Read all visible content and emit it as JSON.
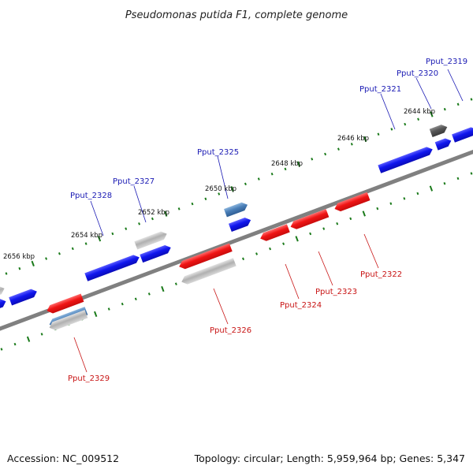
{
  "title": "Pseudomonas putida F1, complete genome",
  "footer": {
    "accession": "Accession: NC_009512",
    "topology": "Topology: circular; Length: 5,959,964 bp; Genes: 5,347"
  },
  "colors": {
    "forward_gene": "#0a10e0",
    "reverse_gene": "#e81010",
    "rna_gene": "#4a7fb8",
    "pseudo_gene": "#a8a8a8",
    "dark_gene": "#5a5a5a",
    "backbone": "#808080",
    "tick": "#1a7a1a",
    "label_forward": "#1a1ab4",
    "label_reverse": "#c81414"
  },
  "ruler": {
    "labels": [
      "2644 kbp",
      "2646 kbp",
      "2648 kbp",
      "2650 kbp",
      "2652 kbp",
      "2654 kbp",
      "2656 kbp"
    ]
  },
  "genes": [
    {
      "name": "Pput_2319",
      "strand": "+",
      "type": "forward"
    },
    {
      "name": "Pput_2320",
      "strand": "+",
      "type": "forward"
    },
    {
      "name": "Pput_2321",
      "strand": "+",
      "type": "forward"
    },
    {
      "name": "Pput_2322",
      "strand": "-",
      "type": "reverse"
    },
    {
      "name": "Pput_2323",
      "strand": "-",
      "type": "reverse"
    },
    {
      "name": "Pput_2324",
      "strand": "-",
      "type": "reverse"
    },
    {
      "name": "Pput_2325",
      "strand": "+",
      "type": "forward"
    },
    {
      "name": "Pput_2326",
      "strand": "-",
      "type": "reverse"
    },
    {
      "name": "Pput_2327",
      "strand": "+",
      "type": "forward"
    },
    {
      "name": "Pput_2328",
      "strand": "+",
      "type": "forward"
    },
    {
      "name": "Pput_2329",
      "strand": "-",
      "type": "reverse"
    }
  ]
}
